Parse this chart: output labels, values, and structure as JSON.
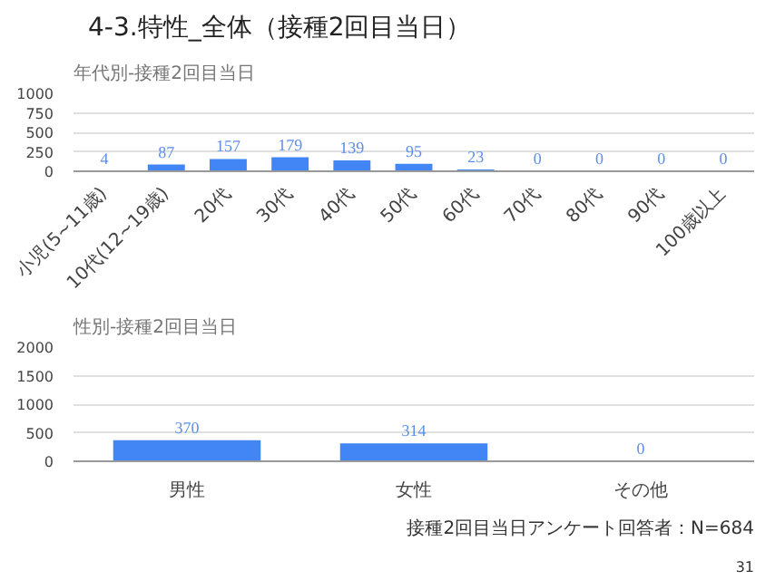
{
  "chart_data": [
    {
      "type": "bar",
      "title": "年代別-接種2回目当日",
      "annotations": [
        "4-3.特性_全体（接種2回目当日）"
      ],
      "categories": [
        "小児(5~11歳)",
        "10代(12~19歳)",
        "20代",
        "30代",
        "40代",
        "50代",
        "60代",
        "70代",
        "80代",
        "90代",
        "100歳以上"
      ],
      "values": [
        4,
        87,
        157,
        179,
        139,
        95,
        23,
        0,
        0,
        0,
        0
      ],
      "color": "#4285f4",
      "ylim": [
        0,
        1000
      ],
      "yticks": [
        0,
        250,
        500,
        750,
        1000
      ],
      "grid": "y",
      "data_labels": true
    },
    {
      "type": "bar",
      "title": "性別-接種2回目当日",
      "annotations": [
        "接種2回目当日アンケート回答者：N=684",
        "31"
      ],
      "categories": [
        "男性",
        "女性",
        "その他"
      ],
      "values": [
        370,
        314,
        0
      ],
      "color": "#4285f4",
      "ylim": [
        0,
        2000
      ],
      "yticks": [
        0,
        500,
        1000,
        1500,
        2000
      ],
      "grid": "y",
      "data_labels": true
    }
  ]
}
